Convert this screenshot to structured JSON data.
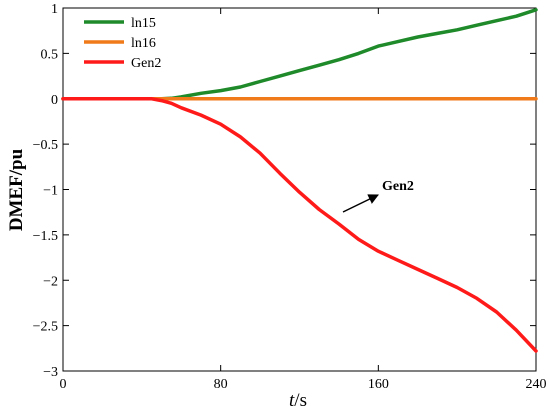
{
  "chart_data": {
    "type": "line",
    "xlabel_italic": "t",
    "xlabel_unit": "/s",
    "ylabel": "DMEF/pu",
    "xlim": [
      0,
      240
    ],
    "ylim": [
      -3,
      1
    ],
    "xticks": [
      0,
      80,
      160,
      240
    ],
    "yticks": [
      1,
      0.5,
      0,
      -0.5,
      -1,
      -1.5,
      -2,
      -2.5,
      -3
    ],
    "ytick_labels": [
      "1",
      "0.5",
      "0",
      "−0.5",
      "−1",
      "−1.5",
      "−2",
      "−2.5",
      "−3"
    ],
    "grid": false,
    "legend_position": "top-left",
    "series": [
      {
        "name": "ln15",
        "color": "#1f8a2a",
        "x": [
          0,
          50,
          55,
          60,
          70,
          80,
          90,
          100,
          110,
          120,
          130,
          140,
          150,
          160,
          170,
          180,
          190,
          200,
          210,
          220,
          230,
          240
        ],
        "y": [
          0,
          0,
          0.005,
          0.02,
          0.06,
          0.09,
          0.13,
          0.19,
          0.25,
          0.31,
          0.37,
          0.43,
          0.5,
          0.58,
          0.63,
          0.68,
          0.72,
          0.76,
          0.81,
          0.86,
          0.91,
          0.98
        ]
      },
      {
        "name": "ln16",
        "color": "#f07a1a",
        "x": [
          0,
          240
        ],
        "y": [
          0,
          0
        ]
      },
      {
        "name": "Gen2",
        "color": "#ff1a1a",
        "x": [
          0,
          45,
          50,
          55,
          60,
          70,
          80,
          90,
          100,
          110,
          120,
          130,
          140,
          150,
          160,
          170,
          180,
          190,
          200,
          210,
          220,
          230,
          240
        ],
        "y": [
          0,
          0,
          -0.02,
          -0.05,
          -0.1,
          -0.18,
          -0.28,
          -0.42,
          -0.6,
          -0.82,
          -1.03,
          -1.22,
          -1.38,
          -1.55,
          -1.68,
          -1.78,
          -1.88,
          -1.98,
          -2.08,
          -2.2,
          -2.35,
          -2.55,
          -2.78
        ]
      }
    ],
    "annotations": [
      {
        "text": "Gen2",
        "arrow_to": [
          140,
          -1.27
        ]
      }
    ]
  }
}
